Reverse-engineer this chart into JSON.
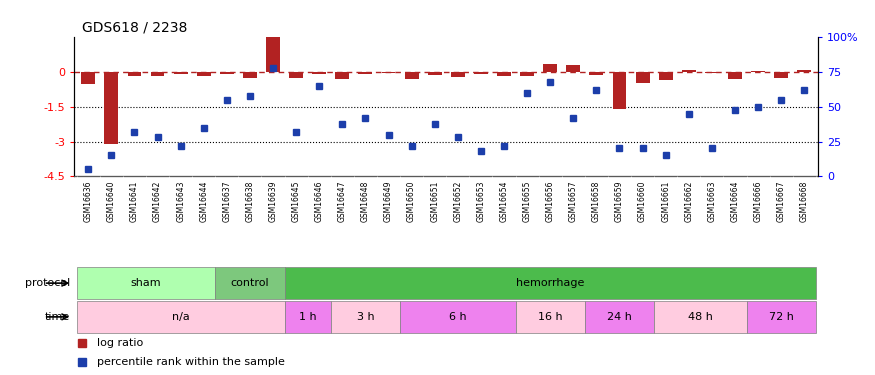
{
  "title": "GDS618 / 2238",
  "samples": [
    "GSM16636",
    "GSM16640",
    "GSM16641",
    "GSM16642",
    "GSM16643",
    "GSM16644",
    "GSM16637",
    "GSM16638",
    "GSM16639",
    "GSM16645",
    "GSM16646",
    "GSM16647",
    "GSM16648",
    "GSM16649",
    "GSM16650",
    "GSM16651",
    "GSM16652",
    "GSM16653",
    "GSM16654",
    "GSM16655",
    "GSM16656",
    "GSM16657",
    "GSM16658",
    "GSM16659",
    "GSM16660",
    "GSM16661",
    "GSM16662",
    "GSM16663",
    "GSM16664",
    "GSM16666",
    "GSM16667",
    "GSM16668"
  ],
  "log_ratio": [
    -0.5,
    -3.1,
    -0.15,
    -0.15,
    -0.1,
    -0.15,
    -0.08,
    -0.25,
    1.5,
    -0.25,
    -0.08,
    -0.3,
    -0.08,
    -0.04,
    -0.3,
    -0.12,
    -0.2,
    -0.08,
    -0.15,
    -0.15,
    0.35,
    0.3,
    -0.12,
    -1.6,
    -0.45,
    -0.35,
    0.1,
    -0.04,
    -0.3,
    0.05,
    -0.25,
    0.08
  ],
  "percentile_rank": [
    5,
    15,
    32,
    28,
    22,
    35,
    55,
    58,
    78,
    32,
    65,
    38,
    42,
    30,
    22,
    38,
    28,
    18,
    22,
    60,
    68,
    42,
    62,
    20,
    20,
    15,
    45,
    20,
    48,
    50,
    55,
    62
  ],
  "bar_color": "#B22222",
  "dot_color": "#1C3EAA",
  "ylim_left": [
    -4.5,
    1.5
  ],
  "ylim_right": [
    0,
    100
  ],
  "yticks_left": [
    0,
    -1.5,
    -3.0,
    -4.5,
    1.5
  ],
  "yticks_left_show": [
    0,
    -1.5,
    -3.0,
    -4.5
  ],
  "yticks_right": [
    0,
    25,
    50,
    75,
    100
  ],
  "background_color": "#ffffff",
  "xticklabel_bg": "#D3D3D3",
  "protocol_groups": [
    {
      "label": "sham",
      "start": 0,
      "end": 5,
      "color": "#AFFFAF"
    },
    {
      "label": "control",
      "start": 6,
      "end": 8,
      "color": "#7DC87D"
    },
    {
      "label": "hemorrhage",
      "start": 9,
      "end": 31,
      "color": "#4CBB4C"
    }
  ],
  "time_groups": [
    {
      "label": "n/a",
      "start": 0,
      "end": 8,
      "color": "#FFCCE0"
    },
    {
      "label": "1 h",
      "start": 9,
      "end": 10,
      "color": "#EE82EE"
    },
    {
      "label": "3 h",
      "start": 11,
      "end": 13,
      "color": "#FFCCE0"
    },
    {
      "label": "6 h",
      "start": 14,
      "end": 18,
      "color": "#EE82EE"
    },
    {
      "label": "16 h",
      "start": 19,
      "end": 21,
      "color": "#FFCCE0"
    },
    {
      "label": "24 h",
      "start": 22,
      "end": 24,
      "color": "#EE82EE"
    },
    {
      "label": "48 h",
      "start": 25,
      "end": 28,
      "color": "#FFCCE0"
    },
    {
      "label": "72 h",
      "start": 29,
      "end": 31,
      "color": "#EE82EE"
    }
  ],
  "protocol_label": "protocol",
  "time_label": "time"
}
